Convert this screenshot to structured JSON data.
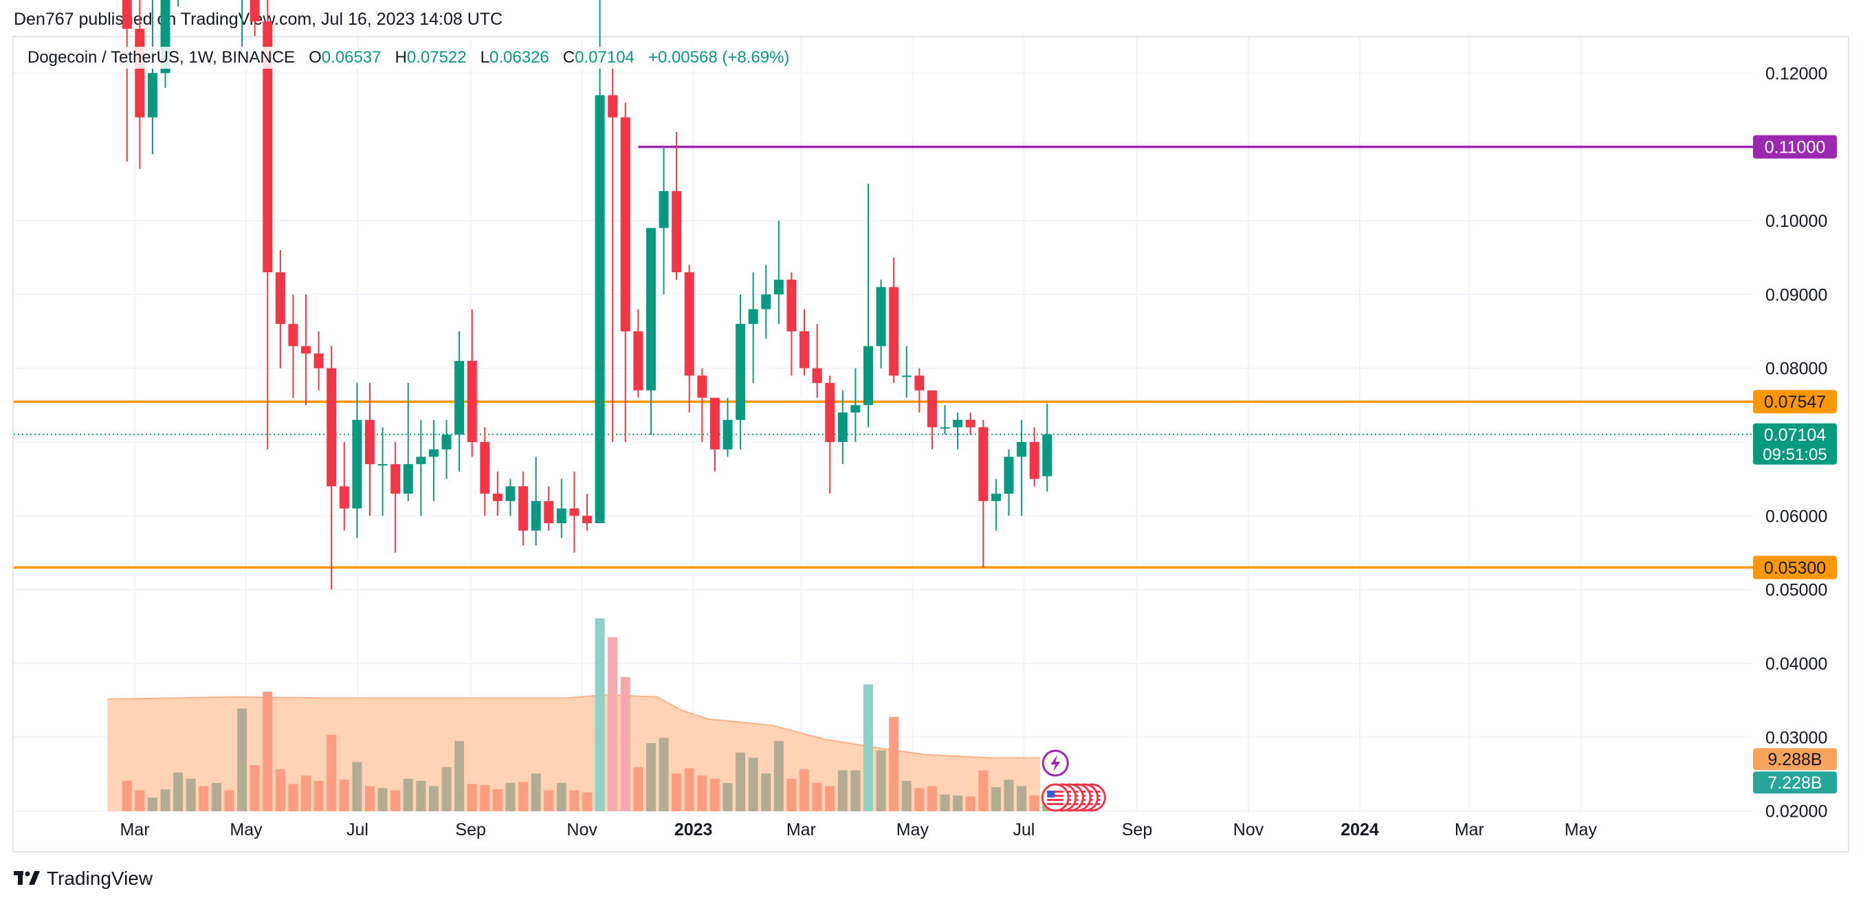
{
  "header": {
    "published": "Den767 published on TradingView.com, Jul 16, 2023 14:08 UTC"
  },
  "legend": {
    "symbol": "Dogecoin / TetherUS, 1W, BINANCE",
    "o_label": "O",
    "o_value": "0.06537",
    "h_label": "H",
    "h_value": "0.07522",
    "l_label": "L",
    "l_value": "0.06326",
    "c_label": "C",
    "c_value": "0.07104",
    "change": "+0.00568 (+8.69%)"
  },
  "footer": {
    "brand": "TradingView",
    "logo_icon": "tradingview-logo-icon"
  },
  "colors": {
    "up": "#089981",
    "down": "#f23645",
    "vol_up": "#b3ac90",
    "vol_down": "#fc9d82",
    "vol_spike_up": "#8dd1c7",
    "vol_spike_down": "#f6a8ad",
    "vol_ma_fill": "#ffcba7",
    "vol_ma_line": "#f9b38a",
    "level": "#ff9800",
    "purple": "#9c27b0",
    "grid": "#f0f3fa"
  },
  "chart_data": {
    "type": "candlestick",
    "interval": "1W",
    "price_scale": {
      "ticks": [
        "0.12000",
        "0.10000",
        "0.09000",
        "0.08000",
        "0.06000",
        "0.05000",
        "0.04000",
        "0.03000",
        "0.02000"
      ],
      "tick_values": [
        0.12,
        0.1,
        0.09,
        0.08,
        0.06,
        0.05,
        0.04,
        0.03,
        0.02
      ]
    },
    "time_labels": [
      {
        "label": "Mar",
        "date": "2022-03-01",
        "bold": false
      },
      {
        "label": "May",
        "date": "2022-05-01",
        "bold": false
      },
      {
        "label": "Jul",
        "date": "2022-07-01",
        "bold": false
      },
      {
        "label": "Sep",
        "date": "2022-09-01",
        "bold": false
      },
      {
        "label": "Nov",
        "date": "2022-11-01",
        "bold": false
      },
      {
        "label": "2023",
        "date": "2023-01-01",
        "bold": true
      },
      {
        "label": "Mar",
        "date": "2023-03-01",
        "bold": false
      },
      {
        "label": "May",
        "date": "2023-05-01",
        "bold": false
      },
      {
        "label": "Jul",
        "date": "2023-07-01",
        "bold": false
      },
      {
        "label": "Sep",
        "date": "2023-09-01",
        "bold": false
      },
      {
        "label": "Nov",
        "date": "2023-11-01",
        "bold": false
      },
      {
        "label": "2024",
        "date": "2024-01-01",
        "bold": true
      },
      {
        "label": "Mar",
        "date": "2024-03-01",
        "bold": false
      },
      {
        "label": "May",
        "date": "2024-05-01",
        "bold": false
      }
    ],
    "horizontal_levels": [
      {
        "name": "resistance",
        "value": 0.07547,
        "label": "0.07547",
        "color": "#ff9800"
      },
      {
        "name": "support",
        "value": 0.053,
        "label": "0.05300",
        "color": "#ff9800"
      }
    ],
    "ray": {
      "value": 0.11,
      "label": "0.11000",
      "start_date": "2022-11-28",
      "color": "#9c27b0"
    },
    "last_price": {
      "value": 0.07104,
      "label": "0.07104",
      "countdown": "09:51:05",
      "color": "#089981"
    },
    "volume_labels": {
      "ma": "9.288B",
      "vol": "7.228B"
    },
    "candles": [
      {
        "d": "2022-02-21",
        "o": 0.133,
        "h": 0.145,
        "l": 0.108,
        "c": 0.126,
        "v": 1.45
      },
      {
        "d": "2022-02-28",
        "o": 0.126,
        "h": 0.133,
        "l": 0.107,
        "c": 0.114,
        "v": 1.0
      },
      {
        "d": "2022-03-07",
        "o": 0.114,
        "h": 0.134,
        "l": 0.109,
        "c": 0.12,
        "v": 0.65
      },
      {
        "d": "2022-03-14",
        "o": 0.12,
        "h": 0.136,
        "l": 0.118,
        "c": 0.13,
        "v": 1.05
      },
      {
        "d": "2022-03-21",
        "o": 0.13,
        "h": 0.158,
        "l": 0.129,
        "c": 0.142,
        "v": 1.85
      },
      {
        "d": "2022-03-28",
        "o": 0.142,
        "h": 0.156,
        "l": 0.135,
        "c": 0.145,
        "v": 1.55
      },
      {
        "d": "2022-04-04",
        "o": 0.145,
        "h": 0.153,
        "l": 0.135,
        "c": 0.138,
        "v": 1.2
      },
      {
        "d": "2022-04-11",
        "o": 0.138,
        "h": 0.146,
        "l": 0.132,
        "c": 0.141,
        "v": 1.35
      },
      {
        "d": "2022-04-18",
        "o": 0.141,
        "h": 0.148,
        "l": 0.131,
        "c": 0.137,
        "v": 1.0
      },
      {
        "d": "2022-04-25",
        "o": 0.137,
        "h": 0.178,
        "l": 0.122,
        "c": 0.148,
        "v": 4.9
      },
      {
        "d": "2022-05-02",
        "o": 0.148,
        "h": 0.151,
        "l": 0.125,
        "c": 0.127,
        "v": 2.2
      },
      {
        "d": "2022-05-09",
        "o": 0.127,
        "h": 0.13,
        "l": 0.069,
        "c": 0.093,
        "v": 5.7
      },
      {
        "d": "2022-05-16",
        "o": 0.093,
        "h": 0.096,
        "l": 0.08,
        "c": 0.086,
        "v": 2.0
      },
      {
        "d": "2022-05-23",
        "o": 0.086,
        "h": 0.09,
        "l": 0.076,
        "c": 0.083,
        "v": 1.3
      },
      {
        "d": "2022-05-30",
        "o": 0.083,
        "h": 0.09,
        "l": 0.075,
        "c": 0.082,
        "v": 1.7
      },
      {
        "d": "2022-06-06",
        "o": 0.082,
        "h": 0.085,
        "l": 0.077,
        "c": 0.08,
        "v": 1.45
      },
      {
        "d": "2022-06-13",
        "o": 0.08,
        "h": 0.083,
        "l": 0.05,
        "c": 0.064,
        "v": 3.65
      },
      {
        "d": "2022-06-20",
        "o": 0.064,
        "h": 0.07,
        "l": 0.058,
        "c": 0.061,
        "v": 1.5
      },
      {
        "d": "2022-06-27",
        "o": 0.061,
        "h": 0.078,
        "l": 0.057,
        "c": 0.073,
        "v": 2.35
      },
      {
        "d": "2022-07-04",
        "o": 0.073,
        "h": 0.078,
        "l": 0.06,
        "c": 0.067,
        "v": 1.2
      },
      {
        "d": "2022-07-11",
        "o": 0.067,
        "h": 0.072,
        "l": 0.06,
        "c": 0.067,
        "v": 1.1
      },
      {
        "d": "2022-07-18",
        "o": 0.067,
        "h": 0.07,
        "l": 0.055,
        "c": 0.063,
        "v": 1.0
      },
      {
        "d": "2022-07-25",
        "o": 0.063,
        "h": 0.078,
        "l": 0.062,
        "c": 0.067,
        "v": 1.55
      },
      {
        "d": "2022-08-01",
        "o": 0.067,
        "h": 0.073,
        "l": 0.06,
        "c": 0.068,
        "v": 1.45
      },
      {
        "d": "2022-08-08",
        "o": 0.068,
        "h": 0.073,
        "l": 0.062,
        "c": 0.069,
        "v": 1.2
      },
      {
        "d": "2022-08-15",
        "o": 0.069,
        "h": 0.073,
        "l": 0.065,
        "c": 0.071,
        "v": 2.1
      },
      {
        "d": "2022-08-22",
        "o": 0.071,
        "h": 0.085,
        "l": 0.066,
        "c": 0.081,
        "v": 3.35
      },
      {
        "d": "2022-08-29",
        "o": 0.081,
        "h": 0.088,
        "l": 0.068,
        "c": 0.07,
        "v": 1.3
      },
      {
        "d": "2022-09-05",
        "o": 0.07,
        "h": 0.072,
        "l": 0.06,
        "c": 0.063,
        "v": 1.25
      },
      {
        "d": "2022-09-12",
        "o": 0.063,
        "h": 0.066,
        "l": 0.06,
        "c": 0.062,
        "v": 1.05
      },
      {
        "d": "2022-09-19",
        "o": 0.062,
        "h": 0.065,
        "l": 0.06,
        "c": 0.064,
        "v": 1.35
      },
      {
        "d": "2022-09-26",
        "o": 0.064,
        "h": 0.066,
        "l": 0.056,
        "c": 0.058,
        "v": 1.4
      },
      {
        "d": "2022-10-03",
        "o": 0.058,
        "h": 0.068,
        "l": 0.056,
        "c": 0.062,
        "v": 1.8
      },
      {
        "d": "2022-10-10",
        "o": 0.062,
        "h": 0.064,
        "l": 0.058,
        "c": 0.059,
        "v": 1.0
      },
      {
        "d": "2022-10-17",
        "o": 0.059,
        "h": 0.065,
        "l": 0.057,
        "c": 0.061,
        "v": 1.35
      },
      {
        "d": "2022-10-24",
        "o": 0.061,
        "h": 0.066,
        "l": 0.055,
        "c": 0.06,
        "v": 1.0
      },
      {
        "d": "2022-10-31",
        "o": 0.06,
        "h": 0.063,
        "l": 0.058,
        "c": 0.059,
        "v": 0.9
      },
      {
        "d": "2022-11-07",
        "o": 0.059,
        "h": 0.135,
        "l": 0.059,
        "c": 0.117,
        "v": 9.2
      },
      {
        "d": "2022-11-14",
        "o": 0.117,
        "h": 0.122,
        "l": 0.07,
        "c": 0.114,
        "v": 8.3
      },
      {
        "d": "2022-11-21",
        "o": 0.114,
        "h": 0.116,
        "l": 0.07,
        "c": 0.085,
        "v": 6.4
      },
      {
        "d": "2022-11-28",
        "o": 0.085,
        "h": 0.088,
        "l": 0.076,
        "c": 0.077,
        "v": 2.1
      },
      {
        "d": "2022-12-05",
        "o": 0.077,
        "h": 0.099,
        "l": 0.071,
        "c": 0.099,
        "v": 3.25
      },
      {
        "d": "2022-12-12",
        "o": 0.099,
        "h": 0.11,
        "l": 0.09,
        "c": 0.104,
        "v": 3.5
      },
      {
        "d": "2022-12-19",
        "o": 0.104,
        "h": 0.112,
        "l": 0.092,
        "c": 0.093,
        "v": 1.8
      },
      {
        "d": "2022-12-26",
        "o": 0.093,
        "h": 0.094,
        "l": 0.074,
        "c": 0.079,
        "v": 2.05
      },
      {
        "d": "2023-01-02",
        "o": 0.079,
        "h": 0.08,
        "l": 0.07,
        "c": 0.076,
        "v": 1.7
      },
      {
        "d": "2023-01-09",
        "o": 0.076,
        "h": 0.076,
        "l": 0.066,
        "c": 0.069,
        "v": 1.55
      },
      {
        "d": "2023-01-16",
        "o": 0.069,
        "h": 0.076,
        "l": 0.068,
        "c": 0.073,
        "v": 1.35
      },
      {
        "d": "2023-01-23",
        "o": 0.073,
        "h": 0.09,
        "l": 0.069,
        "c": 0.086,
        "v": 2.8
      },
      {
        "d": "2023-01-30",
        "o": 0.086,
        "h": 0.093,
        "l": 0.078,
        "c": 0.088,
        "v": 2.55
      },
      {
        "d": "2023-02-06",
        "o": 0.088,
        "h": 0.094,
        "l": 0.084,
        "c": 0.09,
        "v": 1.8
      },
      {
        "d": "2023-02-13",
        "o": 0.09,
        "h": 0.1,
        "l": 0.086,
        "c": 0.092,
        "v": 3.35
      },
      {
        "d": "2023-02-20",
        "o": 0.092,
        "h": 0.093,
        "l": 0.079,
        "c": 0.085,
        "v": 1.55
      },
      {
        "d": "2023-02-27",
        "o": 0.085,
        "h": 0.088,
        "l": 0.079,
        "c": 0.08,
        "v": 2.0
      },
      {
        "d": "2023-03-06",
        "o": 0.08,
        "h": 0.086,
        "l": 0.076,
        "c": 0.078,
        "v": 1.35
      },
      {
        "d": "2023-03-13",
        "o": 0.078,
        "h": 0.079,
        "l": 0.063,
        "c": 0.07,
        "v": 1.2
      },
      {
        "d": "2023-03-20",
        "o": 0.07,
        "h": 0.077,
        "l": 0.067,
        "c": 0.074,
        "v": 1.95
      },
      {
        "d": "2023-03-27",
        "o": 0.074,
        "h": 0.08,
        "l": 0.07,
        "c": 0.075,
        "v": 1.95
      },
      {
        "d": "2023-04-03",
        "o": 0.075,
        "h": 0.105,
        "l": 0.072,
        "c": 0.083,
        "v": 6.05
      },
      {
        "d": "2023-04-10",
        "o": 0.083,
        "h": 0.092,
        "l": 0.08,
        "c": 0.091,
        "v": 2.9
      },
      {
        "d": "2023-04-17",
        "o": 0.091,
        "h": 0.095,
        "l": 0.078,
        "c": 0.079,
        "v": 4.5
      },
      {
        "d": "2023-04-24",
        "o": 0.079,
        "h": 0.083,
        "l": 0.076,
        "c": 0.079,
        "v": 1.45
      },
      {
        "d": "2023-05-01",
        "o": 0.079,
        "h": 0.08,
        "l": 0.074,
        "c": 0.077,
        "v": 1.1
      },
      {
        "d": "2023-05-08",
        "o": 0.077,
        "h": 0.077,
        "l": 0.069,
        "c": 0.072,
        "v": 1.2
      },
      {
        "d": "2023-05-15",
        "o": 0.072,
        "h": 0.075,
        "l": 0.071,
        "c": 0.072,
        "v": 0.8
      },
      {
        "d": "2023-05-22",
        "o": 0.072,
        "h": 0.074,
        "l": 0.069,
        "c": 0.073,
        "v": 0.75
      },
      {
        "d": "2023-05-29",
        "o": 0.073,
        "h": 0.074,
        "l": 0.071,
        "c": 0.072,
        "v": 0.7
      },
      {
        "d": "2023-06-05",
        "o": 0.072,
        "h": 0.073,
        "l": 0.053,
        "c": 0.062,
        "v": 1.95
      },
      {
        "d": "2023-06-12",
        "o": 0.062,
        "h": 0.065,
        "l": 0.058,
        "c": 0.063,
        "v": 1.15
      },
      {
        "d": "2023-06-19",
        "o": 0.063,
        "h": 0.069,
        "l": 0.06,
        "c": 0.068,
        "v": 1.5
      },
      {
        "d": "2023-06-26",
        "o": 0.068,
        "h": 0.073,
        "l": 0.06,
        "c": 0.07,
        "v": 1.2
      },
      {
        "d": "2023-07-03",
        "o": 0.07,
        "h": 0.072,
        "l": 0.064,
        "c": 0.065,
        "v": 0.75
      },
      {
        "d": "2023-07-10",
        "o": 0.06537,
        "h": 0.07522,
        "l": 0.06326,
        "c": 0.07104,
        "v": 0.6
      }
    ],
    "volume_ma": [
      {
        "d": "2022-02-14",
        "v": 5.35
      },
      {
        "d": "2022-04-25",
        "v": 5.45
      },
      {
        "d": "2022-06-13",
        "v": 5.4
      },
      {
        "d": "2022-08-15",
        "v": 5.4
      },
      {
        "d": "2022-10-24",
        "v": 5.4
      },
      {
        "d": "2022-11-14",
        "v": 5.55
      },
      {
        "d": "2022-12-12",
        "v": 5.45
      },
      {
        "d": "2022-12-26",
        "v": 4.8
      },
      {
        "d": "2023-01-09",
        "v": 4.4
      },
      {
        "d": "2023-02-13",
        "v": 4.1
      },
      {
        "d": "2023-03-13",
        "v": 3.45
      },
      {
        "d": "2023-04-10",
        "v": 3.05
      },
      {
        "d": "2023-05-08",
        "v": 2.7
      },
      {
        "d": "2023-06-12",
        "v": 2.55
      },
      {
        "d": "2023-07-10",
        "v": 2.55
      }
    ],
    "event_markers": {
      "lightning_date": "2023-07-10",
      "flag_dates": [
        "2023-07-10",
        "2023-07-14",
        "2023-07-18",
        "2023-07-22",
        "2023-07-26",
        "2023-07-30"
      ],
      "flag_icon": "us-flag-icon",
      "lightning_icon": "lightning-icon"
    }
  }
}
